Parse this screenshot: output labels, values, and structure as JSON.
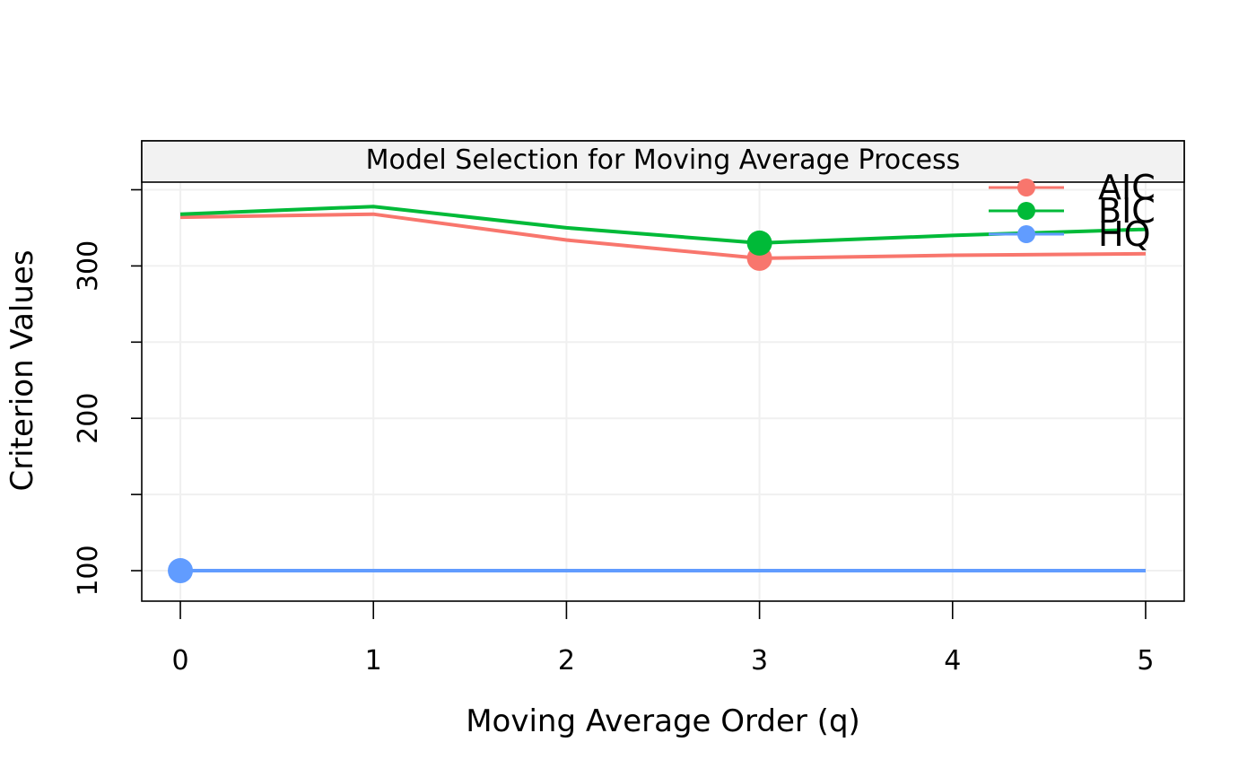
{
  "chart_data": {
    "type": "line",
    "title": "Model Selection for Moving Average Process",
    "xlabel": "Moving Average Order (q)",
    "ylabel": "Criterion Values",
    "x": [
      0,
      1,
      2,
      3,
      4,
      5
    ],
    "xticks": [
      0,
      1,
      2,
      3,
      4,
      5
    ],
    "yticks": [
      100,
      200,
      300
    ],
    "ylim": [
      80,
      355
    ],
    "xlim": [
      -0.2,
      5.2
    ],
    "grid": true,
    "legend_position": "top-right",
    "series": [
      {
        "name": "AIC",
        "color": "#F8766D",
        "values": [
          332,
          334,
          317,
          305,
          307,
          308
        ],
        "min_index": 3
      },
      {
        "name": "BIC",
        "color": "#00BA38",
        "values": [
          334,
          339,
          325,
          315,
          320,
          324
        ],
        "min_index": 3
      },
      {
        "name": "HQ",
        "color": "#619CFF",
        "values": [
          100,
          100,
          100,
          100,
          100,
          100
        ],
        "min_index": 0
      }
    ]
  }
}
